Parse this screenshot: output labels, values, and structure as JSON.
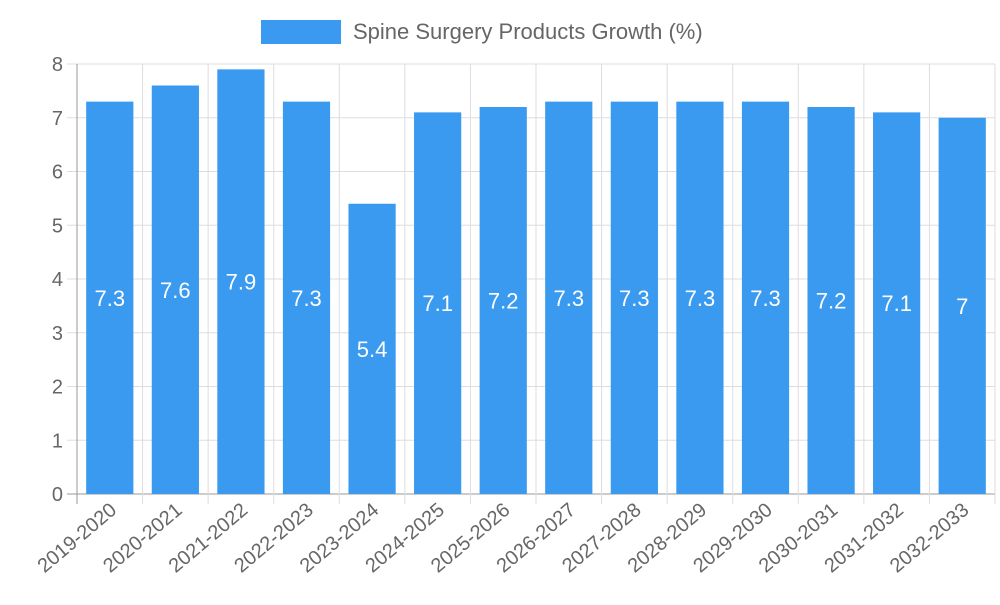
{
  "chart_data": {
    "type": "bar",
    "title": "",
    "xlabel": "",
    "ylabel": "",
    "legend": {
      "position": "top-center",
      "entries": [
        "Spine Surgery Products Growth (%)"
      ]
    },
    "categories": [
      "2019-2020",
      "2020-2021",
      "2021-2022",
      "2022-2023",
      "2023-2024",
      "2024-2025",
      "2025-2026",
      "2026-2027",
      "2027-2028",
      "2028-2029",
      "2029-2030",
      "2030-2031",
      "2031-2032",
      "2032-2033"
    ],
    "series": [
      {
        "name": "Spine Surgery Products Growth (%)",
        "values": [
          7.3,
          7.6,
          7.9,
          7.3,
          5.4,
          7.1,
          7.2,
          7.3,
          7.3,
          7.3,
          7.3,
          7.2,
          7.1,
          7
        ]
      }
    ],
    "ylim": [
      0,
      8
    ],
    "yticks": [
      0,
      1,
      2,
      3,
      4,
      5,
      6,
      7,
      8
    ],
    "grid": true,
    "data_labels": true,
    "colors": {
      "bar": "#3a9af0",
      "grid": "#dddddd",
      "axis": "#999999",
      "tick_text": "#666666",
      "label_text": "#ffffff",
      "legend_text": "#666666"
    }
  }
}
